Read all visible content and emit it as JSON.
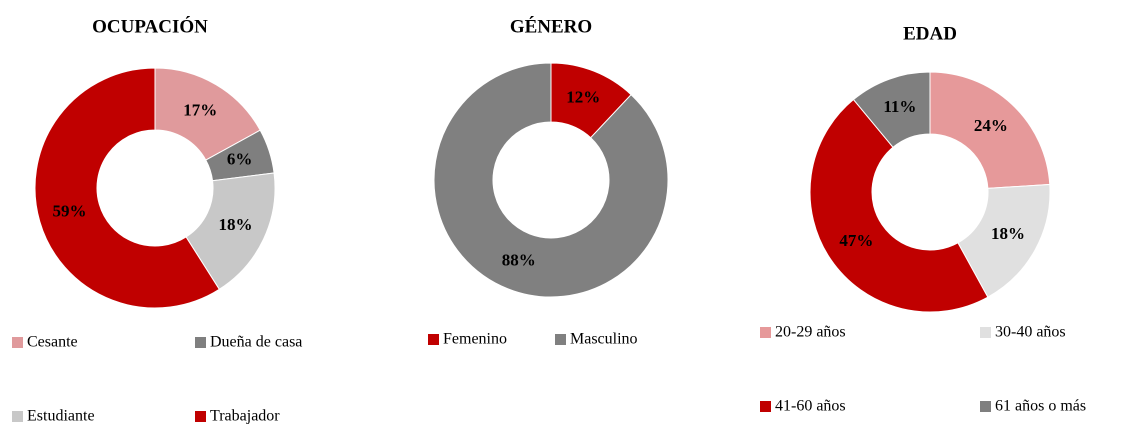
{
  "chart_data": [
    {
      "type": "pie",
      "title": "OCUPACIÓN",
      "categories": [
        "Cesante",
        "Dueña de casa",
        "Estudiante",
        "Trabajador"
      ],
      "values": [
        17,
        6,
        18,
        59
      ],
      "value_labels": [
        "17%",
        "6%",
        "18%",
        "59%"
      ],
      "colors": [
        "#e09a9c",
        "#7f7f7f",
        "#c8c8c8",
        "#c00000"
      ]
    },
    {
      "type": "pie",
      "title": "GÉNERO",
      "categories": [
        "Femenino",
        "Masculino"
      ],
      "values": [
        12,
        88
      ],
      "value_labels": [
        "12%",
        "88%"
      ],
      "colors": [
        "#c00000",
        "#808080"
      ]
    },
    {
      "type": "pie",
      "title": "EDAD",
      "categories": [
        "20-29 años",
        "30-40 años",
        "41-60 años",
        "61 años o más"
      ],
      "values": [
        24,
        18,
        47,
        11
      ],
      "value_labels": [
        "24%",
        "18%",
        "47%",
        "11%"
      ],
      "colors": [
        "#e6999a",
        "#e0e0e0",
        "#c00000",
        "#7f7f7f"
      ]
    }
  ]
}
